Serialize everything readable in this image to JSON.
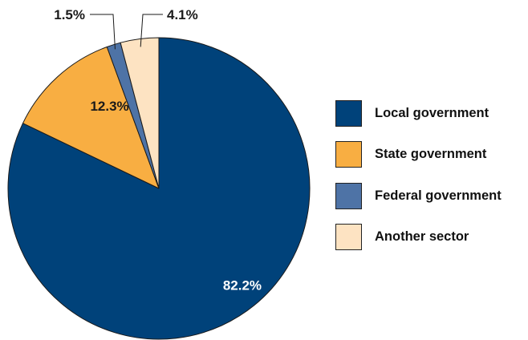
{
  "chart_data": {
    "type": "pie",
    "title": "",
    "categories": [
      "Local government",
      "State government",
      "Federal government",
      "Another sector"
    ],
    "values": [
      82.2,
      12.3,
      1.5,
      4.1
    ],
    "labels": [
      "82.2%",
      "12.3%",
      "1.5%",
      "4.1%"
    ],
    "colors": [
      "#00427a",
      "#f8ae42",
      "#4e73a6",
      "#fde3c2"
    ],
    "start_angle": "12 o'clock",
    "direction": "clockwise",
    "legend_position": "right"
  }
}
